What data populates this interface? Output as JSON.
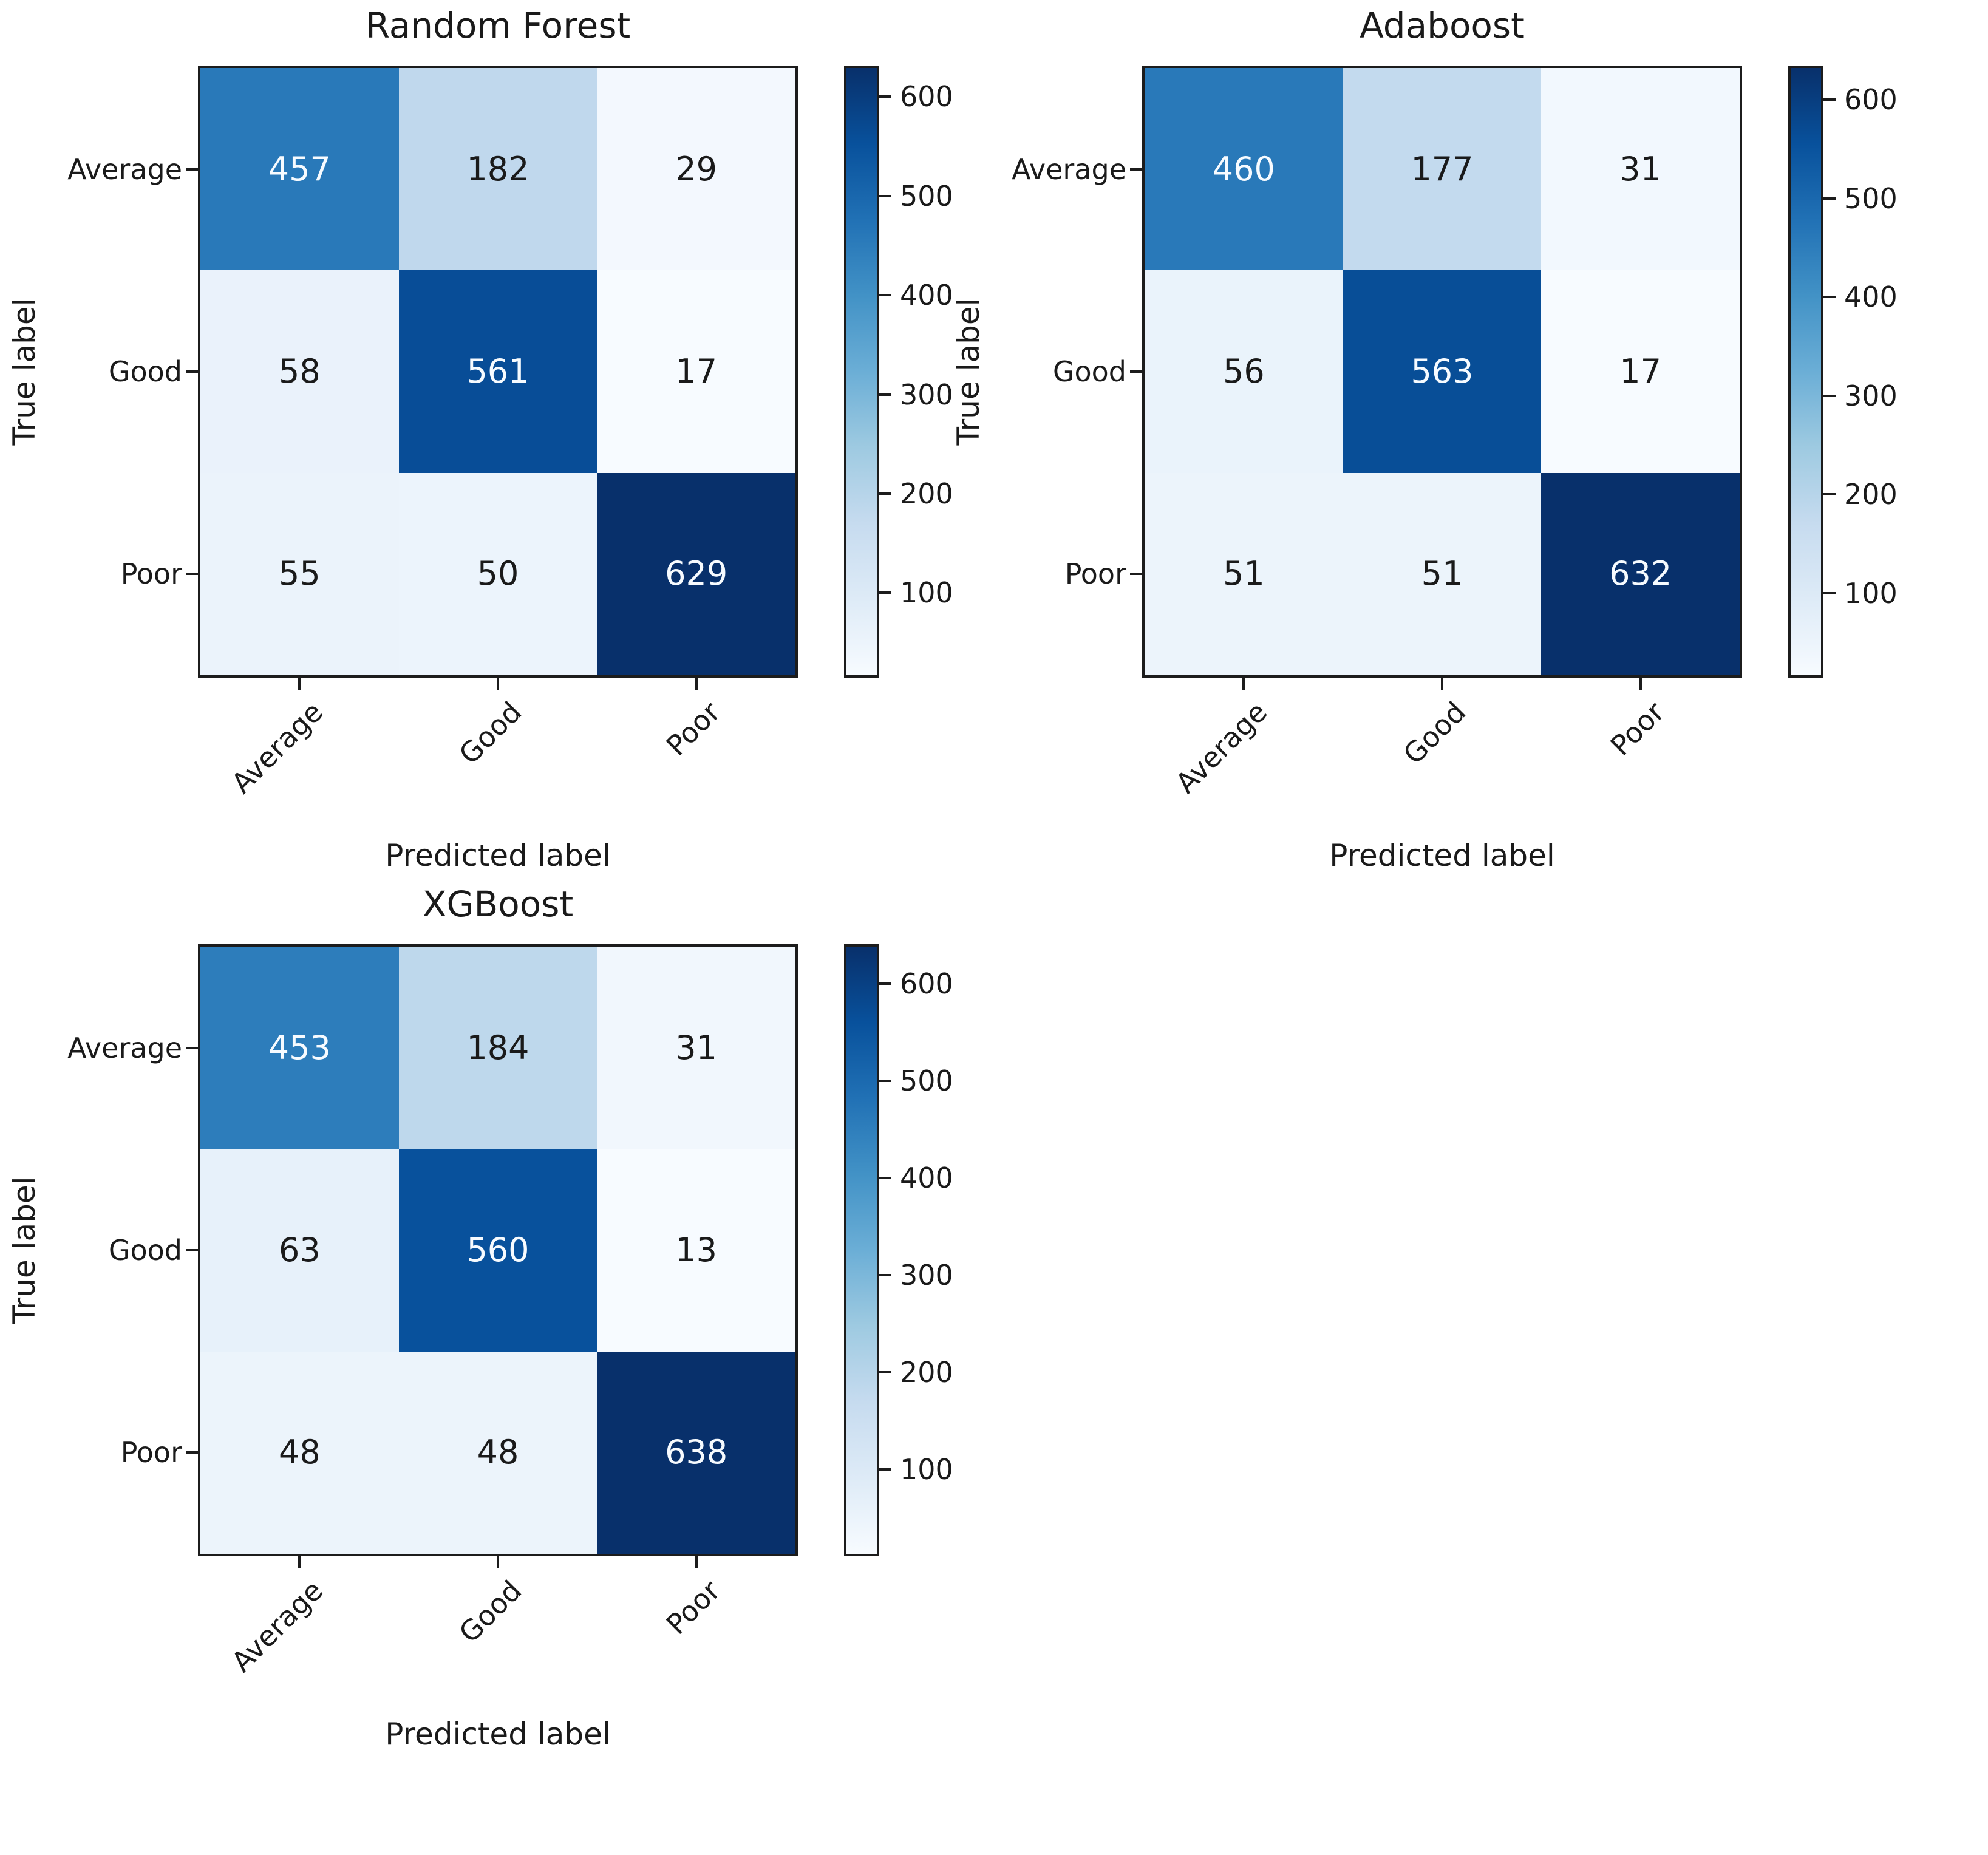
{
  "figure": {
    "background": "#ffffff",
    "text_color": "#1a1a1a",
    "colormap": {
      "name": "Blues",
      "stops": [
        "#f7fbff",
        "#deebf7",
        "#c6dbef",
        "#9ecae1",
        "#6baed6",
        "#4292c6",
        "#2171b5",
        "#08519c",
        "#08306b"
      ]
    }
  },
  "chart_data": [
    {
      "type": "heatmap",
      "title": "Random Forest",
      "xlabel": "Predicted label",
      "ylabel": "True label",
      "x_tick_labels": [
        "Average",
        "Good",
        "Poor"
      ],
      "y_tick_labels": [
        "Average",
        "Good",
        "Poor"
      ],
      "values": [
        [
          457,
          182,
          29
        ],
        [
          58,
          561,
          17
        ],
        [
          55,
          50,
          629
        ]
      ],
      "colorbar": {
        "ticks": [
          100,
          200,
          300,
          400,
          500,
          600
        ],
        "position": "right"
      },
      "grid": false,
      "legend_position": "none"
    },
    {
      "type": "heatmap",
      "title": "Adaboost",
      "xlabel": "Predicted label",
      "ylabel": "True label",
      "x_tick_labels": [
        "Average",
        "Good",
        "Poor"
      ],
      "y_tick_labels": [
        "Average",
        "Good",
        "Poor"
      ],
      "values": [
        [
          460,
          177,
          31
        ],
        [
          56,
          563,
          17
        ],
        [
          51,
          51,
          632
        ]
      ],
      "colorbar": {
        "ticks": [
          100,
          200,
          300,
          400,
          500,
          600
        ],
        "position": "right"
      },
      "grid": false,
      "legend_position": "none"
    },
    {
      "type": "heatmap",
      "title": "XGBoost",
      "xlabel": "Predicted label",
      "ylabel": "True label",
      "x_tick_labels": [
        "Average",
        "Good",
        "Poor"
      ],
      "y_tick_labels": [
        "Average",
        "Good",
        "Poor"
      ],
      "values": [
        [
          453,
          184,
          31
        ],
        [
          63,
          560,
          13
        ],
        [
          48,
          48,
          638
        ]
      ],
      "colorbar": {
        "ticks": [
          100,
          200,
          300,
          400,
          500,
          600
        ],
        "position": "right"
      },
      "grid": false,
      "legend_position": "none"
    }
  ]
}
